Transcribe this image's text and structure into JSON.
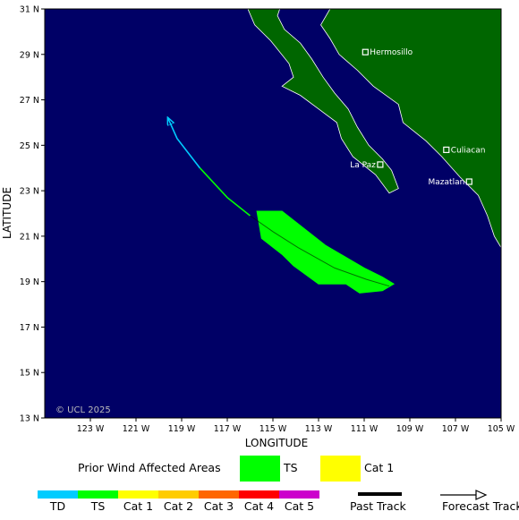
{
  "map": {
    "lat_range": [
      13,
      31
    ],
    "lon_range": [
      -125,
      -105
    ],
    "lat_ticks": [
      {
        "v": 13,
        "label": "13 N"
      },
      {
        "v": 15,
        "label": "15 N"
      },
      {
        "v": 17,
        "label": "17 N"
      },
      {
        "v": 19,
        "label": "19 N"
      },
      {
        "v": 21,
        "label": "21 N"
      },
      {
        "v": 23,
        "label": "23 N"
      },
      {
        "v": 25,
        "label": "25 N"
      },
      {
        "v": 27,
        "label": "27 N"
      },
      {
        "v": 29,
        "label": "29 N"
      },
      {
        "v": 31,
        "label": "31 N"
      }
    ],
    "lon_ticks": [
      {
        "v": -123,
        "label": "123 W"
      },
      {
        "v": -121,
        "label": "121 W"
      },
      {
        "v": -119,
        "label": "119 W"
      },
      {
        "v": -117,
        "label": "117 W"
      },
      {
        "v": -115,
        "label": "115 W"
      },
      {
        "v": -113,
        "label": "113 W"
      },
      {
        "v": -111,
        "label": "111 W"
      },
      {
        "v": -109,
        "label": "109 W"
      },
      {
        "v": -107,
        "label": "107 W"
      },
      {
        "v": -105,
        "label": "105 W"
      }
    ],
    "xlabel": "LONGITUDE",
    "ylabel": "LATITUDE",
    "copyright": "© UCL 2025",
    "colors": {
      "ocean": "#000066",
      "land": "#006600",
      "td": "#00ccff",
      "ts": "#00ff00",
      "cat1": "#ffff00",
      "cat2": "#ffcc00",
      "cat3": "#ff6600",
      "cat4": "#ff0000",
      "cat5": "#cc00cc"
    },
    "cities": [
      {
        "name": "Hermosillo",
        "lat": 29.1,
        "lon": -110.95
      },
      {
        "name": "La Paz",
        "lat": 24.15,
        "lon": -110.3
      },
      {
        "name": "Culiacan",
        "lat": 24.8,
        "lon": -107.4
      },
      {
        "name": "Mazatlan",
        "lat": 23.4,
        "lon": -106.4
      }
    ],
    "past_track": [
      {
        "lat": 18.8,
        "lon": -109.9
      },
      {
        "lat": 19.1,
        "lon": -110.9
      },
      {
        "lat": 19.6,
        "lon": -112.3
      },
      {
        "lat": 20.5,
        "lon": -113.9
      },
      {
        "lat": 21.2,
        "lon": -115.0
      },
      {
        "lat": 21.9,
        "lon": -116.0
      }
    ],
    "forecast_track": [
      {
        "lat": 21.9,
        "lon": -116.0
      },
      {
        "lat": 22.7,
        "lon": -117.0
      },
      {
        "lat": 24.0,
        "lon": -118.2
      },
      {
        "lat": 25.3,
        "lon": -119.2
      },
      {
        "lat": 26.2,
        "lon": -119.6
      }
    ],
    "wind_area_ts": [
      {
        "lat": 22.1,
        "lon": -115.7
      },
      {
        "lat": 22.1,
        "lon": -114.6
      },
      {
        "lat": 20.6,
        "lon": -112.7
      },
      {
        "lat": 19.6,
        "lon": -111.0
      },
      {
        "lat": 19.2,
        "lon": -110.2
      },
      {
        "lat": 18.9,
        "lon": -109.7
      },
      {
        "lat": 18.6,
        "lon": -110.2
      },
      {
        "lat": 18.5,
        "lon": -111.2
      },
      {
        "lat": 18.9,
        "lon": -111.8
      },
      {
        "lat": 18.9,
        "lon": -113.0
      },
      {
        "lat": 19.7,
        "lon": -114.1
      },
      {
        "lat": 20.2,
        "lon": -114.6
      },
      {
        "lat": 20.9,
        "lon": -115.5
      },
      {
        "lat": 22.1,
        "lon": -115.7
      }
    ],
    "land_mainland": [
      {
        "lat": 31,
        "lon": -112.5
      },
      {
        "lat": 30.3,
        "lon": -112.9
      },
      {
        "lat": 29.7,
        "lon": -112.5
      },
      {
        "lat": 29.0,
        "lon": -112.1
      },
      {
        "lat": 28.3,
        "lon": -111.3
      },
      {
        "lat": 27.6,
        "lon": -110.6
      },
      {
        "lat": 26.8,
        "lon": -109.5
      },
      {
        "lat": 26.0,
        "lon": -109.3
      },
      {
        "lat": 25.2,
        "lon": -108.3
      },
      {
        "lat": 24.5,
        "lon": -107.6
      },
      {
        "lat": 23.6,
        "lon": -106.8
      },
      {
        "lat": 22.8,
        "lon": -106.0
      },
      {
        "lat": 21.9,
        "lon": -105.6
      },
      {
        "lat": 21.0,
        "lon": -105.3
      },
      {
        "lat": 20.5,
        "lon": -105.0
      },
      {
        "lat": 20.5,
        "lon": -105
      },
      {
        "lat": 31,
        "lon": -105
      }
    ],
    "land_baja": [
      {
        "lat": 31,
        "lon": -116.1
      },
      {
        "lat": 30.3,
        "lon": -115.8
      },
      {
        "lat": 29.6,
        "lon": -115.1
      },
      {
        "lat": 28.6,
        "lon": -114.3
      },
      {
        "lat": 28.0,
        "lon": -114.1
      },
      {
        "lat": 27.6,
        "lon": -114.6
      },
      {
        "lat": 27.2,
        "lon": -113.8
      },
      {
        "lat": 26.6,
        "lon": -113.0
      },
      {
        "lat": 26.0,
        "lon": -112.2
      },
      {
        "lat": 25.3,
        "lon": -112.0
      },
      {
        "lat": 24.5,
        "lon": -111.5
      },
      {
        "lat": 23.7,
        "lon": -110.5
      },
      {
        "lat": 22.9,
        "lon": -109.9
      },
      {
        "lat": 23.1,
        "lon": -109.5
      },
      {
        "lat": 23.9,
        "lon": -109.8
      },
      {
        "lat": 24.4,
        "lon": -110.2
      },
      {
        "lat": 25.0,
        "lon": -110.8
      },
      {
        "lat": 25.8,
        "lon": -111.3
      },
      {
        "lat": 26.6,
        "lon": -111.7
      },
      {
        "lat": 27.3,
        "lon": -112.3
      },
      {
        "lat": 28.0,
        "lon": -112.8
      },
      {
        "lat": 28.8,
        "lon": -113.3
      },
      {
        "lat": 29.5,
        "lon": -113.8
      },
      {
        "lat": 30.1,
        "lon": -114.5
      },
      {
        "lat": 30.7,
        "lon": -114.8
      },
      {
        "lat": 31,
        "lon": -114.7
      }
    ]
  },
  "legend": {
    "affected_label": "Prior Wind Affected Areas",
    "ts_label": "TS",
    "cat1_label": "Cat 1",
    "scale": [
      {
        "label": "TD",
        "color": "#00ccff"
      },
      {
        "label": "TS",
        "color": "#00ff00"
      },
      {
        "label": "Cat 1",
        "color": "#ffff00"
      },
      {
        "label": "Cat 2",
        "color": "#ffcc00"
      },
      {
        "label": "Cat 3",
        "color": "#ff6600"
      },
      {
        "label": "Cat 4",
        "color": "#ff0000"
      },
      {
        "label": "Cat 5",
        "color": "#cc00cc"
      }
    ],
    "past_track_label": "Past Track",
    "forecast_track_label": "Forecast Track"
  }
}
